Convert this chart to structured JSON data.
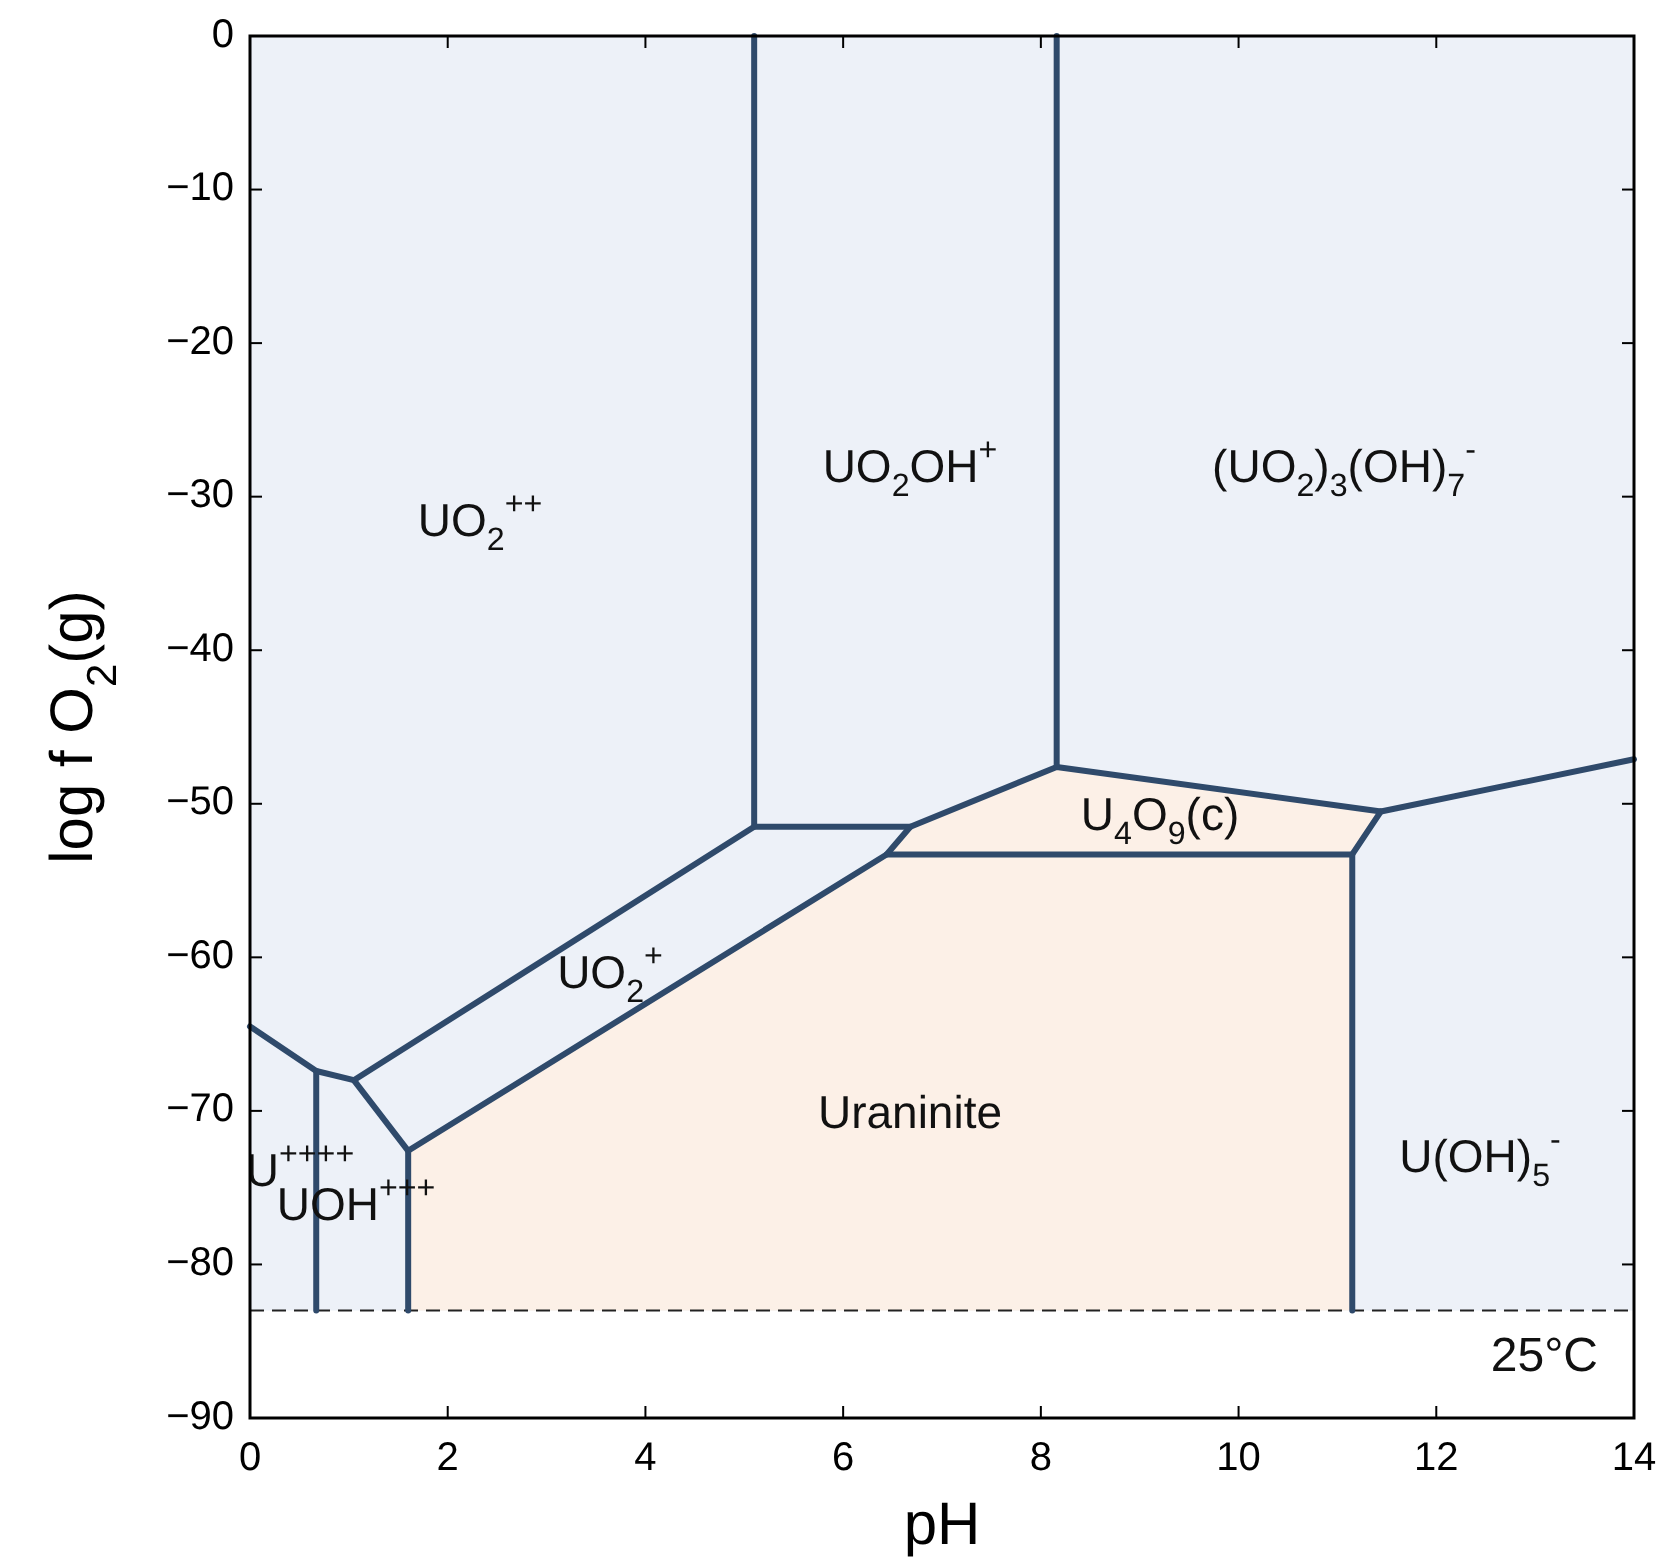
{
  "chart_data": {
    "type": "line",
    "xlabel": "pH",
    "ylabel": "log f O$_{2}$(g)",
    "xlim": [
      0,
      14
    ],
    "ylim": [
      -90,
      0
    ],
    "xticks": [
      0,
      2,
      4,
      6,
      8,
      10,
      12,
      14
    ],
    "yticks": [
      -90,
      -80,
      -70,
      -60,
      -50,
      -40,
      -30,
      -20,
      -10,
      0
    ],
    "bands": [
      {
        "axis": "y",
        "from": -83,
        "to": 0,
        "color": "#edf1f8"
      }
    ],
    "ref_lines": [
      {
        "axis": "y",
        "value": -83,
        "label": "25°C",
        "color": "#222222",
        "line_style": "dashed"
      }
    ],
    "series": [
      {
        "color": "#2f4a6b",
        "x": [
          0,
          0.67,
          1.05,
          1.6,
          6.44,
          6.68,
          8.16,
          11.44,
          14
        ],
        "values": [
          -64.5,
          -67.4,
          -68,
          -72.6,
          -53.3,
          -51.5,
          -47.6,
          -50.5,
          -47.1
        ]
      },
      {
        "color": "#2f4a6b",
        "x": [
          0.67,
          0.67
        ],
        "values": [
          -67.4,
          -83
        ]
      },
      {
        "color": "#2f4a6b",
        "x": [
          1.05,
          5.1,
          5.1
        ],
        "values": [
          -68,
          -51.5,
          0
        ]
      },
      {
        "color": "#2f4a6b",
        "x": [
          5.1,
          6.68
        ],
        "values": [
          -51.5,
          -51.5
        ]
      },
      {
        "color": "#2f4a6b",
        "x": [
          8.16,
          8.16
        ],
        "values": [
          -47.6,
          0
        ]
      },
      {
        "color": "#2f4a6b",
        "x": [
          1.6,
          1.6
        ],
        "values": [
          -72.6,
          -83
        ]
      },
      {
        "color": "#2f4a6b",
        "x": [
          6.44,
          11.15,
          11.15
        ],
        "values": [
          -53.3,
          -53.3,
          -83
        ]
      },
      {
        "color": "#2f4a6b",
        "x": [
          11.44,
          11.15
        ],
        "values": [
          -50.5,
          -53.3
        ]
      }
    ],
    "annotations": [
      "UO$_{2}$$^{++}$",
      "UO$_{2}$OH$^{+}$",
      "(UO$_{2}$)$_{3}$(OH)$_{7}$$^{-}$",
      "U$_{4}$O$_{9}$(c)",
      "UO$_{2}$$^{+}$",
      "Uraninite",
      "U(OH)$_{5}$$^{-}$",
      "U$^{++++}$",
      "UOH$^{+++}$"
    ]
  }
}
